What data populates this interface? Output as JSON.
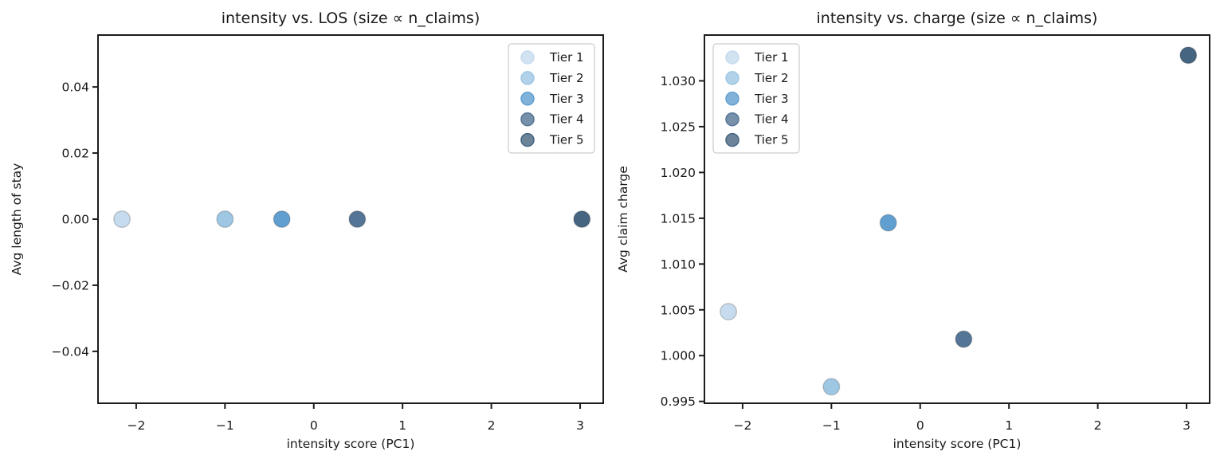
{
  "figure": {
    "background": "#ffffff",
    "text_color": "#1a1a1a",
    "spine_color": "#1c1c1c"
  },
  "tiers": [
    {
      "label": "Tier 1",
      "color": "#c6dbee"
    },
    {
      "label": "Tier 2",
      "color": "#9ec7e4"
    },
    {
      "label": "Tier 3",
      "color": "#619fd0"
    },
    {
      "label": "Tier 4",
      "color": "#557596"
    },
    {
      "label": "Tier 5",
      "color": "#466581"
    }
  ],
  "chart_data": [
    {
      "type": "scatter",
      "title": "intensity vs. LOS (size ∝ n_claims)",
      "xlabel": "intensity score (PC1)",
      "ylabel": "Avg length of stay",
      "xlim": [
        -2.43,
        3.26
      ],
      "ylim": [
        -0.0557,
        0.0557
      ],
      "grid": false,
      "legend_position": "upper-right",
      "xticks": [
        {
          "value": -2,
          "label": "−2"
        },
        {
          "value": -1,
          "label": "−1"
        },
        {
          "value": 0,
          "label": "0"
        },
        {
          "value": 1,
          "label": "1"
        },
        {
          "value": 2,
          "label": "2"
        },
        {
          "value": 3,
          "label": "3"
        }
      ],
      "yticks": [
        {
          "value": 0.04,
          "label": "0.04"
        },
        {
          "value": 0.02,
          "label": "0.02"
        },
        {
          "value": 0.0,
          "label": "0.00"
        },
        {
          "value": -0.02,
          "label": "−0.02"
        },
        {
          "value": -0.04,
          "label": "−0.04"
        }
      ],
      "points": [
        {
          "tier": "Tier 1",
          "x": -2.16,
          "y": 0.0
        },
        {
          "tier": "Tier 2",
          "x": -1.0,
          "y": 0.0
        },
        {
          "tier": "Tier 3",
          "x": -0.36,
          "y": 0.0
        },
        {
          "tier": "Tier 4",
          "x": 0.49,
          "y": 0.0
        },
        {
          "tier": "Tier 5",
          "x": 3.02,
          "y": 0.0
        }
      ]
    },
    {
      "type": "scatter",
      "title": "intensity vs. charge (size ∝ n_claims)",
      "xlabel": "intensity score (PC1)",
      "ylabel": "Avg claim charge",
      "xlim": [
        -2.43,
        3.26
      ],
      "ylim": [
        0.9948,
        1.035
      ],
      "grid": false,
      "legend_position": "upper-left",
      "xticks": [
        {
          "value": -2,
          "label": "−2"
        },
        {
          "value": -1,
          "label": "−1"
        },
        {
          "value": 0,
          "label": "0"
        },
        {
          "value": 1,
          "label": "1"
        },
        {
          "value": 2,
          "label": "2"
        },
        {
          "value": 3,
          "label": "3"
        }
      ],
      "yticks": [
        {
          "value": 1.03,
          "label": "1.030"
        },
        {
          "value": 1.025,
          "label": "1.025"
        },
        {
          "value": 1.02,
          "label": "1.020"
        },
        {
          "value": 1.015,
          "label": "1.015"
        },
        {
          "value": 1.01,
          "label": "1.010"
        },
        {
          "value": 1.005,
          "label": "1.005"
        },
        {
          "value": 1.0,
          "label": "1.000"
        },
        {
          "value": 0.995,
          "label": "0.995"
        }
      ],
      "points": [
        {
          "tier": "Tier 1",
          "x": -2.16,
          "y": 1.0048
        },
        {
          "tier": "Tier 2",
          "x": -1.0,
          "y": 0.9966
        },
        {
          "tier": "Tier 3",
          "x": -0.36,
          "y": 1.0145
        },
        {
          "tier": "Tier 4",
          "x": 0.49,
          "y": 1.0018
        },
        {
          "tier": "Tier 5",
          "x": 3.02,
          "y": 1.0328
        }
      ]
    }
  ]
}
